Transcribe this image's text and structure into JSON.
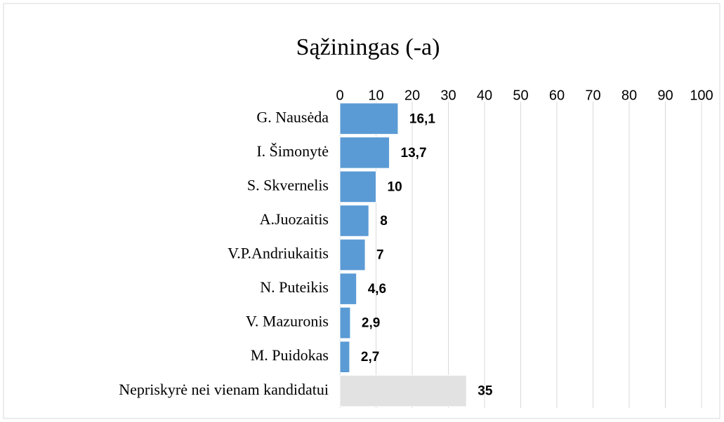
{
  "chart_data": {
    "type": "hbar",
    "title": "Sąžiningas (-a)",
    "categories": [
      "G. Nausėda",
      "I. Šimonytė",
      "S. Skvernelis",
      "A.Juozaitis",
      "V.P.Andriukaitis",
      "N. Puteikis",
      "V. Mazuronis",
      "M. Puidokas",
      "Nepriskyrė nei vienam kandidatui"
    ],
    "values": [
      16.1,
      13.7,
      10,
      8,
      7,
      4.6,
      2.9,
      2.7,
      35
    ],
    "value_labels": [
      "16,1",
      "13,7",
      "10",
      "8",
      "7",
      "4,6",
      "2,9",
      "2,7",
      "35"
    ],
    "colors": [
      "#5b9bd5",
      "#5b9bd5",
      "#5b9bd5",
      "#5b9bd5",
      "#5b9bd5",
      "#5b9bd5",
      "#5b9bd5",
      "#5b9bd5",
      "#e2e2e2"
    ],
    "xlim": [
      0,
      100
    ],
    "xticks": [
      0,
      10,
      20,
      30,
      40,
      50,
      60,
      70,
      80,
      90,
      100
    ],
    "grid": true
  }
}
